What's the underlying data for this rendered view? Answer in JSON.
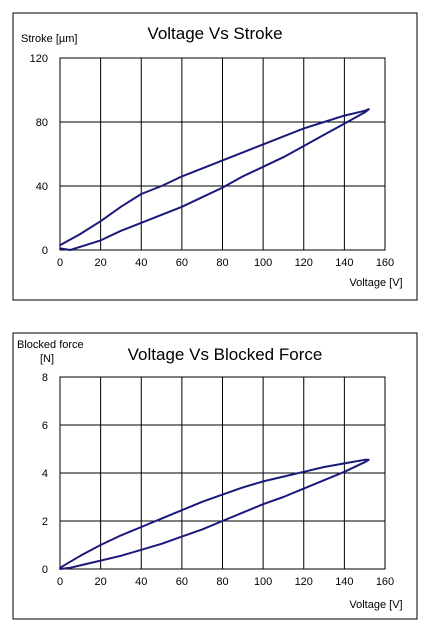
{
  "chart_data": [
    {
      "type": "line",
      "title": "Voltage Vs Stroke",
      "xlabel": "Voltage [V]",
      "ylabel": "Stroke [µm]",
      "xlim": [
        0,
        160
      ],
      "ylim": [
        0,
        120
      ],
      "xticks": [
        "0",
        "20",
        "40",
        "60",
        "80",
        "100",
        "120",
        "140",
        "160"
      ],
      "yticks": [
        "0",
        "40",
        "80",
        "120"
      ],
      "grid": true,
      "color": "#1a1a7a",
      "series": [
        {
          "x": [
            0,
            10,
            20,
            30,
            40,
            50,
            60,
            70,
            80,
            90,
            100,
            110,
            120,
            130,
            140,
            150,
            152
          ],
          "values": [
            3,
            10,
            18,
            27,
            35,
            40,
            46,
            51,
            56,
            61,
            66,
            71,
            76,
            80,
            84,
            87,
            88
          ]
        },
        {
          "x": [
            152,
            150,
            140,
            130,
            120,
            110,
            100,
            90,
            80,
            70,
            60,
            50,
            40,
            30,
            20,
            10,
            5,
            0
          ],
          "values": [
            88,
            86,
            79,
            72,
            65,
            58,
            52,
            46,
            39,
            33,
            27,
            22,
            17,
            12,
            6,
            2,
            0,
            1
          ]
        }
      ]
    },
    {
      "type": "line",
      "title": "Voltage Vs Blocked Force",
      "xlabel": "Voltage [V]",
      "ylabel_line1": "Blocked force",
      "ylabel_line2": "[N]",
      "xlim": [
        0,
        160
      ],
      "ylim": [
        0,
        8
      ],
      "xticks": [
        "0",
        "20",
        "40",
        "60",
        "80",
        "100",
        "120",
        "140",
        "160"
      ],
      "yticks": [
        "0",
        "2",
        "4",
        "6",
        "8"
      ],
      "grid": true,
      "color": "#1a1a7a",
      "series": [
        {
          "x": [
            0,
            10,
            20,
            30,
            40,
            50,
            60,
            70,
            80,
            90,
            100,
            110,
            120,
            130,
            140,
            150,
            152
          ],
          "values": [
            0.05,
            0.55,
            1.0,
            1.4,
            1.75,
            2.1,
            2.45,
            2.8,
            3.1,
            3.4,
            3.65,
            3.85,
            4.05,
            4.25,
            4.4,
            4.55,
            4.55
          ]
        },
        {
          "x": [
            152,
            150,
            140,
            130,
            120,
            110,
            100,
            90,
            80,
            70,
            60,
            50,
            40,
            30,
            20,
            10,
            5,
            0
          ],
          "values": [
            4.55,
            4.45,
            4.05,
            3.7,
            3.35,
            3.0,
            2.7,
            2.35,
            2.0,
            1.65,
            1.35,
            1.05,
            0.8,
            0.55,
            0.35,
            0.15,
            0.05,
            0.0
          ]
        }
      ]
    }
  ]
}
